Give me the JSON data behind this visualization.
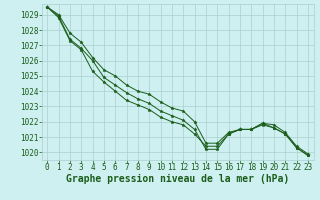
{
  "bg_color": "#cff0f0",
  "grid_color": "#aacece",
  "line_color": "#1a5c1a",
  "marker_color": "#1a5c1a",
  "title": "Graphe pression niveau de la mer (hPa)",
  "xlim": [
    -0.5,
    23.5
  ],
  "ylim": [
    1019.5,
    1029.7
  ],
  "yticks": [
    1020,
    1021,
    1022,
    1023,
    1024,
    1025,
    1026,
    1027,
    1028,
    1029
  ],
  "xticks": [
    0,
    1,
    2,
    3,
    4,
    5,
    6,
    7,
    8,
    9,
    10,
    11,
    12,
    13,
    14,
    15,
    16,
    17,
    18,
    19,
    20,
    21,
    22,
    23
  ],
  "series": [
    [
      1029.5,
      1029.0,
      1027.8,
      1027.2,
      1026.2,
      1025.4,
      1025.0,
      1024.4,
      1024.0,
      1023.8,
      1023.3,
      1022.9,
      1022.7,
      1022.0,
      1020.6,
      1020.6,
      1021.3,
      1021.5,
      1021.5,
      1021.8,
      1021.6,
      1021.2,
      1020.3,
      1019.8
    ],
    [
      1029.5,
      1028.9,
      1027.4,
      1026.8,
      1026.0,
      1024.9,
      1024.4,
      1023.9,
      1023.5,
      1023.2,
      1022.7,
      1022.4,
      1022.1,
      1021.5,
      1020.2,
      1020.2,
      1021.2,
      1021.5,
      1021.5,
      1021.9,
      1021.6,
      1021.2,
      1020.3,
      1019.8
    ],
    [
      1029.5,
      1028.8,
      1027.3,
      1026.7,
      1025.3,
      1024.6,
      1024.0,
      1023.4,
      1023.1,
      1022.8,
      1022.3,
      1022.0,
      1021.8,
      1021.2,
      1020.4,
      1020.4,
      1021.2,
      1021.5,
      1021.5,
      1021.9,
      1021.8,
      1021.3,
      1020.4,
      1019.9
    ]
  ],
  "tick_fontsize": 5.5,
  "title_fontsize": 7.0,
  "linewidth": 0.7,
  "markersize": 2.5
}
